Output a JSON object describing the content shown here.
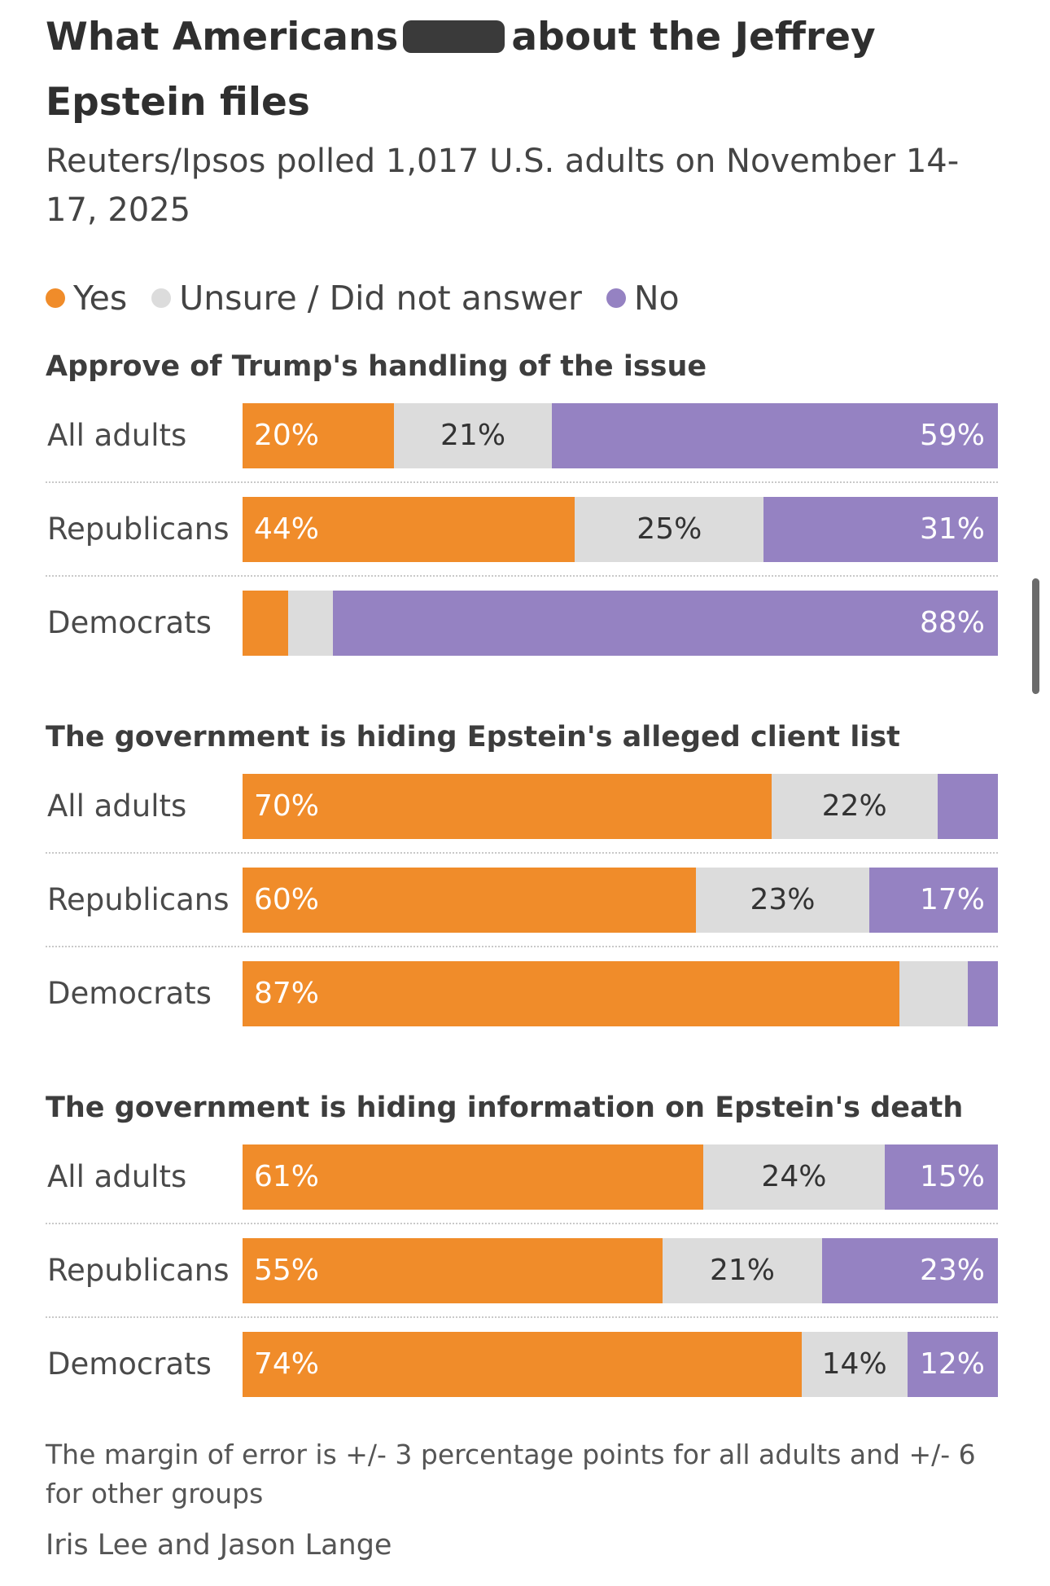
{
  "header": {
    "title_before": "What Americans",
    "title_after": "about the Jeffrey Epstein files",
    "subtitle": "Reuters/Ipsos polled 1,017 U.S. adults on November 14-17, 2025"
  },
  "legend": [
    {
      "label": "Yes",
      "color": "#f08c2a"
    },
    {
      "label": "Unsure / Did not answer",
      "color": "#dcdcdc"
    },
    {
      "label": "No",
      "color": "#9582c2"
    }
  ],
  "chart_data": {
    "type": "bar",
    "stacked": true,
    "orientation": "horizontal",
    "series_names": [
      "Yes",
      "Unsure / Did not answer",
      "No"
    ],
    "colors": {
      "yes": "#f08c2a",
      "unsure": "#dcdcdc",
      "no": "#9582c2"
    },
    "panels": [
      {
        "title": "Approve of Trump's handling of the issue",
        "rows": [
          {
            "label": "All adults",
            "yes": 20,
            "unsure": 21,
            "no": 59,
            "yes_label": "20%",
            "unsure_label": "21%",
            "no_label": "59%"
          },
          {
            "label": "Republicans",
            "yes": 44,
            "unsure": 25,
            "no": 31,
            "yes_label": "44%",
            "unsure_label": "25%",
            "no_label": "31%"
          },
          {
            "label": "Democrats",
            "yes": 6,
            "unsure": 6,
            "no": 88,
            "yes_label": "",
            "unsure_label": "",
            "no_label": "88%"
          }
        ]
      },
      {
        "title": "The government is hiding Epstein's alleged client list",
        "rows": [
          {
            "label": "All adults",
            "yes": 70,
            "unsure": 22,
            "no": 8,
            "yes_label": "70%",
            "unsure_label": "22%",
            "no_label": ""
          },
          {
            "label": "Republicans",
            "yes": 60,
            "unsure": 23,
            "no": 17,
            "yes_label": "60%",
            "unsure_label": "23%",
            "no_label": "17%"
          },
          {
            "label": "Democrats",
            "yes": 87,
            "unsure": 9,
            "no": 4,
            "yes_label": "87%",
            "unsure_label": "",
            "no_label": ""
          }
        ]
      },
      {
        "title": "The government is hiding information on Epstein's death",
        "rows": [
          {
            "label": "All adults",
            "yes": 61,
            "unsure": 24,
            "no": 15,
            "yes_label": "61%",
            "unsure_label": "24%",
            "no_label": "15%"
          },
          {
            "label": "Republicans",
            "yes": 55,
            "unsure": 21,
            "no": 23,
            "yes_label": "55%",
            "unsure_label": "21%",
            "no_label": "23%"
          },
          {
            "label": "Democrats",
            "yes": 74,
            "unsure": 14,
            "no": 12,
            "yes_label": "74%",
            "unsure_label": "14%",
            "no_label": "12%"
          }
        ]
      }
    ]
  },
  "footer": {
    "note": "The margin of error is +/- 3 percentage points for all adults and +/- 6 for other groups",
    "byline": "Iris Lee and Jason Lange"
  }
}
